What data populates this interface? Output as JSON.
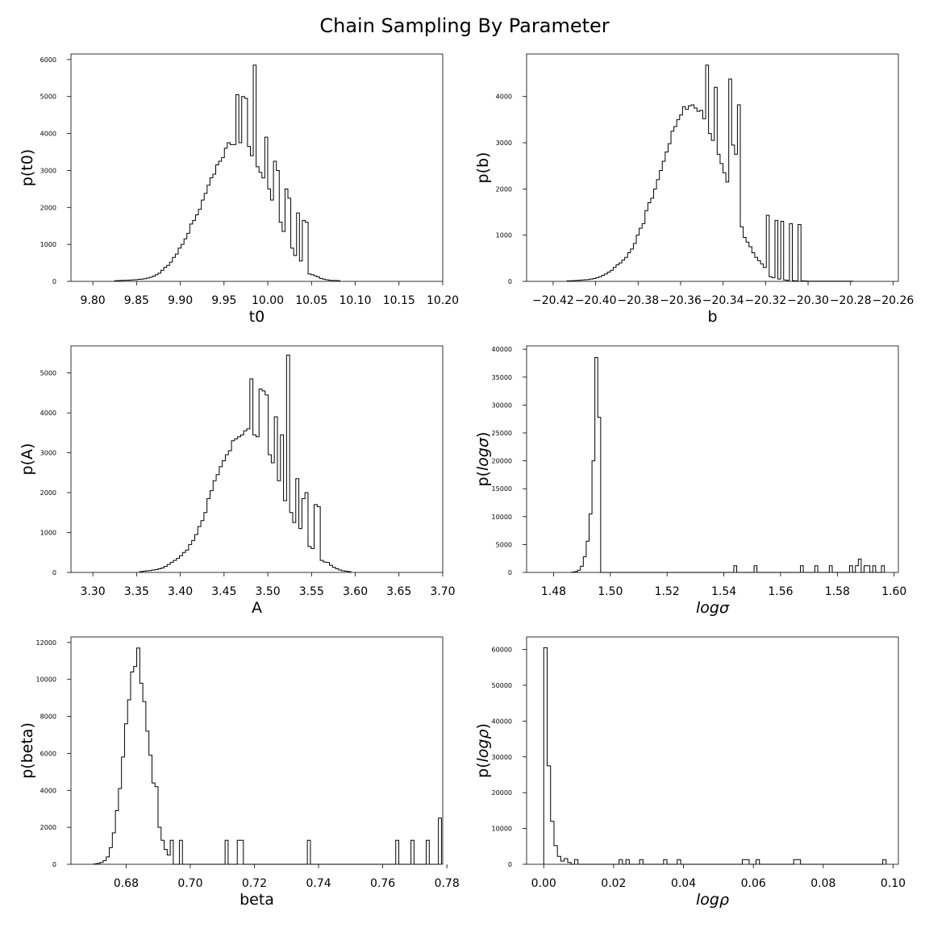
{
  "figure": {
    "title": "Chain Sampling By Parameter"
  },
  "chart_data": [
    {
      "type": "histogram",
      "xlabel": "t0",
      "ylabel": "p(t0)",
      "label_italic": false,
      "xlim": [
        9.775,
        10.2
      ],
      "ylim": [
        0,
        6150
      ],
      "xticks": [
        9.8,
        9.85,
        9.9,
        9.95,
        10.0,
        10.05,
        10.1,
        10.15,
        10.2
      ],
      "xtick_labels": [
        "9.80",
        "9.85",
        "9.90",
        "9.95",
        "10.00",
        "10.05",
        "10.10",
        "10.15",
        "10.20"
      ],
      "yticks": [
        0,
        1000,
        2000,
        3000,
        4000,
        5000,
        6000
      ],
      "ytick_labels": [
        "0",
        "1000",
        "2000",
        "3000",
        "4000",
        "5000",
        "6000"
      ],
      "bin_start": 9.825,
      "bin_width": 0.0033,
      "values": [
        20,
        22,
        25,
        30,
        30,
        35,
        40,
        45,
        55,
        60,
        70,
        90,
        110,
        140,
        180,
        220,
        300,
        380,
        430,
        520,
        650,
        740,
        900,
        1000,
        1150,
        1300,
        1550,
        1650,
        1800,
        1950,
        2200,
        2380,
        2600,
        2800,
        2900,
        3150,
        3250,
        3350,
        3600,
        3750,
        3700,
        3700,
        5050,
        3750,
        5000,
        4950,
        3650,
        3400,
        5850,
        3100,
        2950,
        2800,
        3900,
        2500,
        2200,
        3250,
        3000,
        1600,
        1350,
        2500,
        2250,
        900,
        700,
        1850,
        550,
        1650,
        1600,
        200,
        180,
        150,
        120,
        80,
        60,
        45,
        30,
        25,
        25,
        20
      ]
    },
    {
      "type": "histogram",
      "xlabel": "b",
      "ylabel": "p(b)",
      "label_italic": false,
      "xlim": [
        -20.4325,
        -20.2575
      ],
      "ylim": [
        0,
        4920
      ],
      "xticks": [
        -20.42,
        -20.4,
        -20.38,
        -20.36,
        -20.34,
        -20.32,
        -20.3,
        -20.28,
        -20.26
      ],
      "xtick_labels": [
        "−20.42",
        "−20.40",
        "−20.38",
        "−20.36",
        "−20.34",
        "−20.32",
        "−20.30",
        "−20.28",
        "−20.26"
      ],
      "yticks": [
        0,
        1000,
        2000,
        3000,
        4000
      ],
      "ytick_labels": [
        "0",
        "1000",
        "2000",
        "3000",
        "4000"
      ],
      "bin_start": -20.4135,
      "bin_width": 0.00136,
      "values": [
        10,
        12,
        15,
        20,
        25,
        30,
        35,
        40,
        50,
        60,
        80,
        100,
        130,
        160,
        200,
        240,
        300,
        360,
        400,
        460,
        520,
        620,
        700,
        820,
        1000,
        1150,
        1250,
        1530,
        1700,
        1800,
        2000,
        2200,
        2400,
        2600,
        2800,
        2980,
        3250,
        3350,
        3500,
        3600,
        3780,
        3720,
        3800,
        3820,
        3750,
        3680,
        3700,
        3520,
        4680,
        3200,
        3050,
        4200,
        2750,
        2550,
        2350,
        2150,
        4380,
        2950,
        2750,
        3820,
        1180,
        950,
        850,
        750,
        620,
        520,
        450,
        380,
        300,
        1430,
        100,
        80,
        1320,
        50,
        1300,
        30,
        20,
        1250,
        15,
        10,
        1230,
        10,
        8,
        5,
        5,
        5,
        5,
        5,
        5,
        5,
        5,
        5,
        5,
        5,
        5,
        5,
        5,
        5,
        5
      ]
    },
    {
      "type": "histogram",
      "xlabel": "A",
      "ylabel": "p(A)",
      "label_italic": false,
      "xlim": [
        3.275,
        3.7
      ],
      "ylim": [
        0,
        5680
      ],
      "xticks": [
        3.3,
        3.35,
        3.4,
        3.45,
        3.5,
        3.55,
        3.6,
        3.65,
        3.7
      ],
      "xtick_labels": [
        "3.30",
        "3.35",
        "3.40",
        "3.45",
        "3.50",
        "3.55",
        "3.60",
        "3.65",
        "3.70"
      ],
      "yticks": [
        0,
        1000,
        2000,
        3000,
        4000,
        5000
      ],
      "ytick_labels": [
        "0",
        "1000",
        "2000",
        "3000",
        "4000",
        "5000"
      ],
      "bin_start": 3.3535,
      "bin_width": 0.0035,
      "values": [
        20,
        30,
        40,
        45,
        60,
        70,
        90,
        110,
        150,
        200,
        250,
        300,
        350,
        420,
        500,
        560,
        700,
        800,
        950,
        1150,
        1300,
        1500,
        1850,
        2050,
        2300,
        2450,
        2650,
        2800,
        2950,
        3050,
        3300,
        3350,
        3400,
        3450,
        3550,
        3600,
        4850,
        3450,
        3400,
        4600,
        4550,
        4450,
        2950,
        2750,
        3900,
        2300,
        3450,
        1800,
        5450,
        1500,
        1250,
        2350,
        1100,
        1850,
        2000,
        650,
        600,
        1700,
        1650,
        300,
        260,
        250,
        180,
        130,
        90,
        60,
        40,
        30,
        20
      ]
    },
    {
      "type": "histogram",
      "xlabel": "logσ",
      "ylabel": "p(logσ)",
      "label_italic": true,
      "ylabel_prefix": "p(",
      "ylabel_italic": "logσ",
      "ylabel_suffix": ")",
      "xlim": [
        1.4705,
        1.6015
      ],
      "ylim": [
        0,
        40600
      ],
      "xticks": [
        1.48,
        1.5,
        1.52,
        1.54,
        1.56,
        1.58,
        1.6
      ],
      "xtick_labels": [
        "1.48",
        "1.50",
        "1.52",
        "1.54",
        "1.56",
        "1.58",
        "1.60"
      ],
      "yticks": [
        0,
        5000,
        10000,
        15000,
        20000,
        25000,
        30000,
        35000,
        40000
      ],
      "ytick_labels": [
        "0",
        "5000",
        "10000",
        "15000",
        "20000",
        "25000",
        "30000",
        "35000",
        "40000"
      ],
      "bin_start": 1.4864,
      "bin_width": 0.00102,
      "values": [
        50,
        150,
        400,
        1100,
        2800,
        5600,
        10500,
        20000,
        38500,
        27800,
        0,
        0,
        0,
        0,
        0,
        0,
        0,
        0,
        0,
        0,
        0,
        0,
        0,
        0,
        0,
        0,
        0,
        0,
        0,
        0,
        0,
        0,
        0,
        0,
        0,
        0,
        0,
        0,
        0,
        0,
        0,
        0,
        0,
        0,
        0,
        0,
        0,
        0,
        0,
        0,
        0,
        0,
        0,
        0,
        0,
        0,
        1200,
        0,
        0,
        0,
        0,
        0,
        0,
        1200,
        0,
        0,
        0,
        0,
        0,
        0,
        0,
        0,
        0,
        0,
        0,
        0,
        0,
        0,
        0,
        1200,
        0,
        0,
        0,
        0,
        1200,
        0,
        0,
        0,
        0,
        1200,
        0,
        0,
        0,
        0,
        0,
        0,
        1200,
        0,
        1200,
        2400,
        0,
        1200,
        1200,
        0,
        1200,
        0,
        0,
        1200
      ]
    },
    {
      "type": "histogram",
      "xlabel": "beta",
      "ylabel": "p(beta)",
      "label_italic": false,
      "xlim": [
        0.6628,
        0.7787
      ],
      "ylim": [
        0,
        12300
      ],
      "xticks": [
        0.68,
        0.7,
        0.72,
        0.74,
        0.76,
        0.78
      ],
      "xtick_labels": [
        "0.68",
        "0.70",
        "0.72",
        "0.74",
        "0.76",
        "0.78"
      ],
      "yticks": [
        0,
        2000,
        4000,
        6000,
        8000,
        10000,
        12000
      ],
      "ytick_labels": [
        "0",
        "2000",
        "4000",
        "6000",
        "8000",
        "10000",
        "12000"
      ],
      "bin_start": 0.67,
      "bin_width": 0.00095,
      "values": [
        20,
        50,
        100,
        200,
        400,
        900,
        1700,
        2900,
        4100,
        5800,
        7600,
        8900,
        10400,
        10700,
        11700,
        9800,
        8800,
        7200,
        5900,
        4400,
        4200,
        2000,
        1300,
        800,
        500,
        1300,
        0,
        0,
        1300,
        0,
        0,
        0,
        0,
        0,
        0,
        0,
        0,
        0,
        0,
        0,
        0,
        0,
        0,
        1300,
        0,
        0,
        0,
        1300,
        1300,
        0,
        0,
        0,
        0,
        0,
        0,
        0,
        0,
        0,
        0,
        0,
        0,
        0,
        0,
        0,
        0,
        0,
        0,
        0,
        0,
        0,
        1300,
        0,
        0,
        0,
        0,
        0,
        0,
        0,
        0,
        0,
        0,
        0,
        0,
        0,
        0,
        0,
        0,
        0,
        0,
        0,
        0,
        0,
        0,
        0,
        0,
        0,
        0,
        0,
        0,
        1300,
        0,
        0,
        0,
        0,
        1300,
        0,
        0,
        0,
        0,
        1300,
        0,
        0,
        0,
        2500
      ]
    },
    {
      "type": "histogram",
      "xlabel": "logρ",
      "ylabel": "p(logρ)",
      "label_italic": true,
      "ylabel_prefix": "p(",
      "ylabel_italic": "logρ",
      "ylabel_suffix": ")",
      "xlim": [
        -0.0049,
        0.1015
      ],
      "ylim": [
        0,
        63500
      ],
      "xticks": [
        0.0,
        0.02,
        0.04,
        0.06,
        0.08,
        0.1
      ],
      "xtick_labels": [
        "0.00",
        "0.02",
        "0.04",
        "0.06",
        "0.08",
        "0.10"
      ],
      "yticks": [
        0,
        10000,
        20000,
        30000,
        40000,
        50000,
        60000
      ],
      "ytick_labels": [
        "0",
        "10000",
        "20000",
        "30000",
        "40000",
        "50000",
        "60000"
      ],
      "bin_start": 0.0,
      "bin_width": 0.00098,
      "values": [
        60500,
        27500,
        12000,
        5200,
        2200,
        900,
        1600,
        500,
        0,
        1300,
        0,
        0,
        0,
        0,
        0,
        0,
        0,
        0,
        0,
        0,
        0,
        0,
        1300,
        0,
        1300,
        0,
        0,
        0,
        1300,
        0,
        0,
        0,
        0,
        0,
        0,
        1300,
        0,
        0,
        0,
        1300,
        0,
        0,
        0,
        0,
        0,
        0,
        0,
        0,
        0,
        0,
        0,
        0,
        0,
        0,
        0,
        0,
        0,
        0,
        1300,
        1300,
        0,
        0,
        1300,
        0,
        0,
        0,
        0,
        0,
        0,
        0,
        0,
        0,
        0,
        1300,
        1300,
        0,
        0,
        0,
        0,
        0,
        0,
        0,
        0,
        0,
        0,
        0,
        0,
        0,
        0,
        0,
        0,
        0,
        0,
        0,
        0,
        0,
        0,
        0,
        0,
        1300
      ]
    }
  ]
}
